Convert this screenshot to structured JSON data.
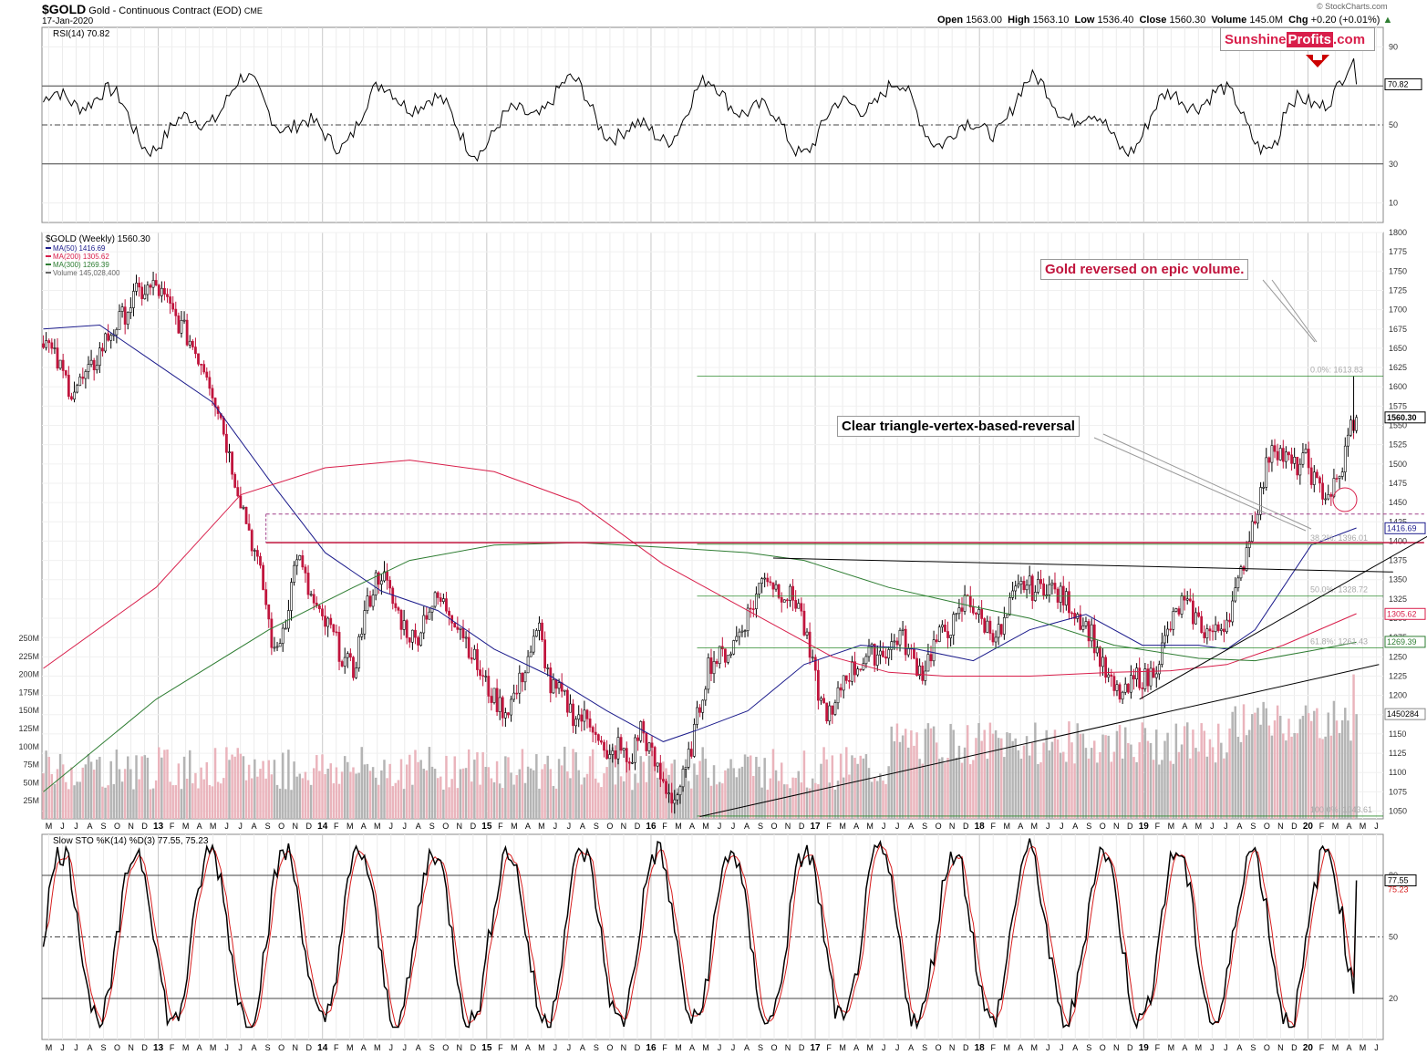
{
  "header": {
    "symbol": "$GOLD",
    "title": "Gold - Continuous Contract (EOD)",
    "exchange": "CME",
    "date": "17-Jan-2020",
    "open_label": "Open",
    "open": "1563.00",
    "high_label": "High",
    "high": "1563.10",
    "low_label": "Low",
    "low": "1536.40",
    "close_label": "Close",
    "close": "1560.30",
    "volume_label": "Volume",
    "volume": "145.0M",
    "chg_label": "Chg",
    "chg": "+0.20 (+0.01%)",
    "watermark": "© StockCharts.com"
  },
  "brand": {
    "part1": "Sunshine",
    "part2": "Profits",
    "part3": ".com"
  },
  "colors": {
    "up": "#ffffff",
    "down": "#c0143c",
    "ma50": "#1c1c8c",
    "ma200": "#d81e4a",
    "ma300": "#2e7d32",
    "fib": "#2e8b2e",
    "volume_up": "#b4b4b4",
    "volume_down": "#eab4bc"
  },
  "annotations": {
    "epic_volume": "Gold reversed on epic volume.",
    "triangle": "Clear triangle-vertex-based-reversal"
  },
  "chart_data": [
    {
      "type": "line",
      "panel": "rsi",
      "title": "RSI(14) 70.82",
      "current": 70.82,
      "levels": [
        70,
        50,
        30
      ],
      "yticks": [
        10,
        30,
        50,
        70,
        90
      ],
      "ylim": [
        0,
        100
      ],
      "last_label": "70.82"
    },
    {
      "type": "candlestick",
      "panel": "price",
      "title": "$GOLD (Weekly) 1560.30",
      "legend": [
        "MA(50) 1416.69",
        "MA(200) 1305.62",
        "MA(300) 1269.39",
        "Volume 145,028,400"
      ],
      "ylim": [
        1040,
        1800
      ],
      "yticks": [
        1050,
        1075,
        1100,
        1125,
        1150,
        1175,
        1200,
        1225,
        1250,
        1275,
        1300,
        1325,
        1350,
        1375,
        1400,
        1425,
        1450,
        1475,
        1500,
        1525,
        1550,
        1575,
        1600,
        1625,
        1650,
        1675,
        1700,
        1725,
        1750,
        1775,
        1800
      ],
      "volume_ticks": [
        "25M",
        "50M",
        "75M",
        "100M",
        "125M",
        "150M",
        "175M",
        "200M",
        "225M",
        "250M"
      ],
      "volume_ylim": [
        0,
        250
      ],
      "last_close": "1560.30",
      "ma_labels": [
        "1416.69",
        "1305.62",
        "1269.39"
      ],
      "volume_label": "1450284",
      "fib_levels": [
        {
          "label": "0.0%: 1613.83",
          "value": 1613.83
        },
        {
          "label": "38.2%: 1396.01",
          "value": 1396.01
        },
        {
          "label": "50.0%: 1328.72",
          "value": 1328.72
        },
        {
          "label": "61.8%: 1261.43",
          "value": 1261.43
        },
        {
          "label": "100.0%: 1043.61",
          "value": 1043.61
        }
      ],
      "price_anchors": [
        [
          0,
          1665
        ],
        [
          5,
          1630
        ],
        [
          10,
          1595
        ],
        [
          16,
          1615
        ],
        [
          22,
          1660
        ],
        [
          28,
          1690
        ],
        [
          33,
          1720
        ],
        [
          40,
          1730
        ],
        [
          46,
          1695
        ],
        [
          52,
          1660
        ],
        [
          58,
          1620
        ],
        [
          63,
          1560
        ],
        [
          66,
          1510
        ],
        [
          70,
          1455
        ],
        [
          74,
          1400
        ],
        [
          78,
          1340
        ],
        [
          82,
          1250
        ],
        [
          86,
          1300
        ],
        [
          90,
          1385
        ],
        [
          94,
          1335
        ],
        [
          98,
          1300
        ],
        [
          102,
          1285
        ],
        [
          106,
          1250
        ],
        [
          110,
          1230
        ],
        [
          114,
          1305
        ],
        [
          118,
          1350
        ],
        [
          120,
          1360
        ],
        [
          124,
          1320
        ],
        [
          128,
          1290
        ],
        [
          132,
          1270
        ],
        [
          136,
          1310
        ],
        [
          140,
          1325
        ],
        [
          144,
          1310
        ],
        [
          148,
          1290
        ],
        [
          152,
          1255
        ],
        [
          156,
          1220
        ],
        [
          160,
          1195
        ],
        [
          164,
          1180
        ],
        [
          168,
          1205
        ],
        [
          172,
          1250
        ],
        [
          176,
          1285
        ],
        [
          180,
          1210
        ],
        [
          184,
          1200
        ],
        [
          188,
          1175
        ],
        [
          192,
          1170
        ],
        [
          196,
          1160
        ],
        [
          200,
          1110
        ],
        [
          204,
          1135
        ],
        [
          208,
          1110
        ],
        [
          212,
          1160
        ],
        [
          216,
          1120
        ],
        [
          220,
          1085
        ],
        [
          224,
          1065
        ],
        [
          228,
          1100
        ],
        [
          232,
          1170
        ],
        [
          236,
          1240
        ],
        [
          240,
          1250
        ],
        [
          244,
          1260
        ],
        [
          248,
          1290
        ],
        [
          252,
          1320
        ],
        [
          256,
          1360
        ],
        [
          260,
          1340
        ],
        [
          264,
          1330
        ],
        [
          268,
          1320
        ],
        [
          272,
          1250
        ],
        [
          276,
          1190
        ],
        [
          280,
          1170
        ],
        [
          284,
          1225
        ],
        [
          288,
          1235
        ],
        [
          292,
          1250
        ],
        [
          296,
          1255
        ],
        [
          300,
          1260
        ],
        [
          304,
          1280
        ],
        [
          308,
          1250
        ],
        [
          312,
          1230
        ],
        [
          316,
          1265
        ],
        [
          320,
          1285
        ],
        [
          324,
          1295
        ],
        [
          328,
          1330
        ],
        [
          332,
          1300
        ],
        [
          336,
          1285
        ],
        [
          340,
          1280
        ],
        [
          344,
          1325
        ],
        [
          348,
          1345
        ],
        [
          352,
          1335
        ],
        [
          356,
          1345
        ],
        [
          360,
          1330
        ],
        [
          364,
          1320
        ],
        [
          368,
          1300
        ],
        [
          372,
          1280
        ],
        [
          376,
          1235
        ],
        [
          380,
          1205
        ],
        [
          384,
          1200
        ],
        [
          388,
          1225
        ],
        [
          392,
          1220
        ],
        [
          396,
          1250
        ],
        [
          400,
          1290
        ],
        [
          404,
          1320
        ],
        [
          408,
          1305
        ],
        [
          412,
          1285
        ],
        [
          416,
          1280
        ],
        [
          420,
          1300
        ],
        [
          424,
          1340
        ],
        [
          428,
          1410
        ],
        [
          432,
          1460
        ],
        [
          436,
          1530
        ],
        [
          440,
          1510
        ],
        [
          444,
          1495
        ],
        [
          448,
          1505
        ],
        [
          452,
          1470
        ],
        [
          456,
          1460
        ],
        [
          460,
          1480
        ],
        [
          464,
          1550
        ],
        [
          466,
          1560
        ]
      ],
      "ma50": [
        [
          0,
          1675
        ],
        [
          20,
          1680
        ],
        [
          40,
          1630
        ],
        [
          60,
          1580
        ],
        [
          80,
          1480
        ],
        [
          100,
          1385
        ],
        [
          120,
          1335
        ],
        [
          140,
          1310
        ],
        [
          160,
          1260
        ],
        [
          180,
          1225
        ],
        [
          200,
          1180
        ],
        [
          220,
          1140
        ],
        [
          232,
          1155
        ],
        [
          250,
          1180
        ],
        [
          270,
          1240
        ],
        [
          290,
          1265
        ],
        [
          310,
          1260
        ],
        [
          330,
          1245
        ],
        [
          350,
          1285
        ],
        [
          370,
          1305
        ],
        [
          390,
          1265
        ],
        [
          410,
          1265
        ],
        [
          420,
          1260
        ],
        [
          430,
          1285
        ],
        [
          440,
          1340
        ],
        [
          450,
          1395
        ],
        [
          466,
          1417
        ]
      ],
      "ma200": [
        [
          0,
          1235
        ],
        [
          40,
          1340
        ],
        [
          70,
          1460
        ],
        [
          100,
          1495
        ],
        [
          130,
          1505
        ],
        [
          160,
          1490
        ],
        [
          190,
          1450
        ],
        [
          220,
          1370
        ],
        [
          250,
          1310
        ],
        [
          280,
          1250
        ],
        [
          300,
          1230
        ],
        [
          320,
          1225
        ],
        [
          350,
          1225
        ],
        [
          380,
          1230
        ],
        [
          400,
          1232
        ],
        [
          420,
          1240
        ],
        [
          440,
          1265
        ],
        [
          466,
          1306
        ]
      ],
      "ma300": [
        [
          0,
          1075
        ],
        [
          40,
          1195
        ],
        [
          80,
          1285
        ],
        [
          110,
          1340
        ],
        [
          130,
          1375
        ],
        [
          160,
          1395
        ],
        [
          190,
          1398
        ],
        [
          220,
          1392
        ],
        [
          250,
          1385
        ],
        [
          270,
          1375
        ],
        [
          300,
          1340
        ],
        [
          330,
          1315
        ],
        [
          350,
          1300
        ],
        [
          380,
          1265
        ],
        [
          410,
          1248
        ],
        [
          430,
          1245
        ],
        [
          450,
          1258
        ],
        [
          466,
          1269
        ]
      ],
      "trendlines": [
        {
          "from": [
            233,
            1043
          ],
          "to": [
            474,
            1240
          ]
        },
        {
          "from": [
            389,
            1195
          ],
          "to": [
            493,
            1410
          ]
        },
        {
          "from": [
            259,
            1378
          ],
          "to": [
            479,
            1360
          ]
        }
      ],
      "horizontal_lines": [
        {
          "value": 1398,
          "from": 79,
          "to": 490,
          "color": "#c0143c"
        },
        {
          "value": 1435,
          "from": 79,
          "to": 490,
          "color": "#a0408a",
          "dashed": true
        }
      ]
    },
    {
      "type": "line",
      "panel": "stochastic",
      "title": "Slow STO %K(14) %D(3) 77.55, 75.23",
      "k_value": 77.55,
      "d_value": 75.23,
      "levels": [
        80,
        50,
        20
      ],
      "yticks": [
        20,
        50,
        80
      ],
      "ylim": [
        0,
        100
      ],
      "last_labels": [
        "77.55",
        "75.23"
      ]
    }
  ],
  "x_axis": {
    "labels": [
      "M",
      "J",
      "J",
      "A",
      "S",
      "O",
      "N",
      "D",
      "13",
      "F",
      "M",
      "A",
      "M",
      "J",
      "J",
      "A",
      "S",
      "O",
      "N",
      "D",
      "14",
      "F",
      "M",
      "A",
      "M",
      "J",
      "J",
      "A",
      "S",
      "O",
      "N",
      "D",
      "15",
      "F",
      "M",
      "A",
      "M",
      "J",
      "J",
      "A",
      "S",
      "O",
      "N",
      "D",
      "16",
      "F",
      "M",
      "A",
      "M",
      "J",
      "J",
      "A",
      "S",
      "O",
      "N",
      "D",
      "17",
      "F",
      "M",
      "A",
      "M",
      "J",
      "J",
      "A",
      "S",
      "O",
      "N",
      "D",
      "18",
      "F",
      "M",
      "A",
      "M",
      "J",
      "J",
      "A",
      "S",
      "O",
      "N",
      "D",
      "19",
      "F",
      "M",
      "A",
      "M",
      "J",
      "J",
      "A",
      "S",
      "O",
      "N",
      "D",
      "20",
      "F",
      "M",
      "A",
      "M",
      "J"
    ]
  }
}
